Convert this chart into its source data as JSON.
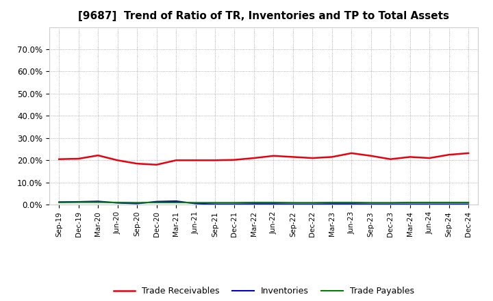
{
  "title": "[9687]  Trend of Ratio of TR, Inventories and TP to Total Assets",
  "x_labels": [
    "Sep-19",
    "Dec-19",
    "Mar-20",
    "Jun-20",
    "Sep-20",
    "Dec-20",
    "Mar-21",
    "Jun-21",
    "Sep-21",
    "Dec-21",
    "Mar-22",
    "Jun-22",
    "Sep-22",
    "Dec-22",
    "Mar-23",
    "Jun-23",
    "Sep-23",
    "Dec-23",
    "Mar-24",
    "Jun-24",
    "Sep-24",
    "Dec-24"
  ],
  "trade_receivables": [
    0.205,
    0.207,
    0.222,
    0.2,
    0.185,
    0.18,
    0.2,
    0.2,
    0.2,
    0.202,
    0.21,
    0.22,
    0.215,
    0.21,
    0.215,
    0.232,
    0.22,
    0.205,
    0.215,
    0.21,
    0.225,
    0.232
  ],
  "inventories": [
    0.012,
    0.013,
    0.015,
    0.008,
    0.005,
    0.014,
    0.016,
    0.005,
    0.002,
    0.002,
    0.003,
    0.003,
    0.002,
    0.002,
    0.003,
    0.003,
    0.002,
    0.002,
    0.002,
    0.002,
    0.002,
    0.002
  ],
  "trade_payables": [
    0.01,
    0.011,
    0.011,
    0.01,
    0.009,
    0.01,
    0.01,
    0.009,
    0.009,
    0.009,
    0.01,
    0.01,
    0.009,
    0.009,
    0.01,
    0.01,
    0.009,
    0.009,
    0.01,
    0.01,
    0.01,
    0.01
  ],
  "tr_color": "#e8000d",
  "inv_color": "#0000cc",
  "tp_color": "#008000",
  "ylim": [
    0.0,
    0.8
  ],
  "yticks": [
    0.0,
    0.1,
    0.2,
    0.3,
    0.4,
    0.5,
    0.6,
    0.7
  ],
  "bg_color": "#ffffff",
  "plot_bg_color": "#ffffff",
  "legend_labels": [
    "Trade Receivables",
    "Inventories",
    "Trade Payables"
  ]
}
